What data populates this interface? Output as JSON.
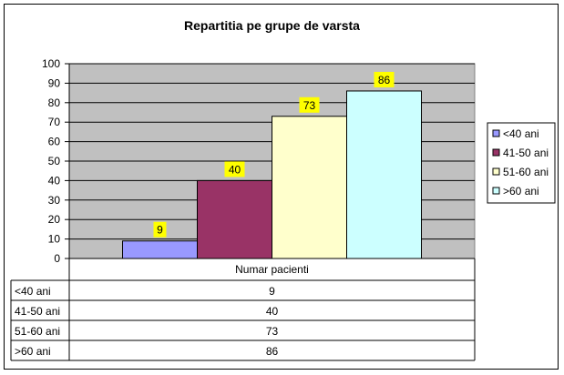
{
  "chart_data": {
    "type": "bar",
    "title": "Repartitia pe grupe de varsta",
    "xlabel": "",
    "ylabel": "",
    "ylim": [
      0,
      100
    ],
    "yticks": [
      0,
      10,
      20,
      30,
      40,
      50,
      60,
      70,
      80,
      90,
      100
    ],
    "grid": true,
    "legend_position": "right",
    "plot_background": "#c0c0c0",
    "data_label_background": "#ffff00",
    "category": "Numar pacienti",
    "series": [
      {
        "name": "<40 ani",
        "values": [
          9
        ],
        "color": "#9999ff"
      },
      {
        "name": "41-50 ani",
        "values": [
          40
        ],
        "color": "#993366"
      },
      {
        "name": "51-60 ani",
        "values": [
          73
        ],
        "color": "#ffffcc"
      },
      {
        "name": ">60 ani",
        "values": [
          86
        ],
        "color": "#ccffff"
      }
    ],
    "data_table": {
      "header": "Numar pacienti",
      "rows": [
        {
          "label": "<40 ani",
          "value": "9"
        },
        {
          "label": "41-50 ani",
          "value": "40"
        },
        {
          "label": "51-60 ani",
          "value": "73"
        },
        {
          "label": ">60 ani",
          "value": "86"
        }
      ]
    }
  }
}
